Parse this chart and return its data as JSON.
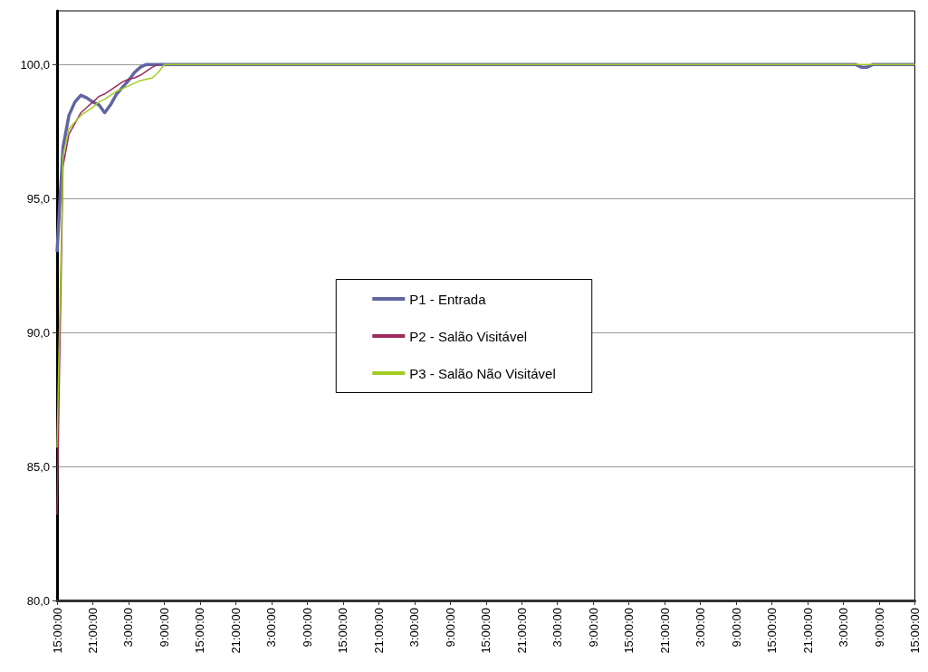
{
  "chart_data": {
    "type": "line",
    "ylim": [
      80,
      102
    ],
    "categories": [
      "15:00:00",
      null,
      null,
      null,
      null,
      null,
      "21:00:00",
      null,
      null,
      null,
      null,
      null,
      "3:00:00",
      null,
      null,
      null,
      null,
      null,
      "9:00:00",
      null,
      null,
      null,
      null,
      null,
      "15:00:00",
      null,
      null,
      null,
      null,
      null,
      "21:00:00",
      null,
      null,
      null,
      null,
      null,
      "3:00:00",
      null,
      null,
      null,
      null,
      null,
      "9:00:00",
      null,
      null,
      null,
      null,
      null,
      "15:00:00",
      null,
      null,
      null,
      null,
      null,
      "21:00:00",
      null,
      null,
      null,
      null,
      null,
      "3:00:00",
      null,
      null,
      null,
      null,
      null,
      "9:00:00",
      null,
      null,
      null,
      null,
      null,
      "15:00:00",
      null,
      null,
      null,
      null,
      null,
      "21:00:00",
      null,
      null,
      null,
      null,
      null,
      "3:00:00",
      null,
      null,
      null,
      null,
      null,
      "9:00:00",
      null,
      null,
      null,
      null,
      null,
      "15:00:00",
      null,
      null,
      null,
      null,
      null,
      "21:00:00",
      null,
      null,
      null,
      null,
      null,
      "3:00:00",
      null,
      null,
      null,
      null,
      null,
      "9:00:00",
      null,
      null,
      null,
      null,
      null,
      "15:00:00",
      null,
      null,
      null,
      null,
      null,
      "21:00:00",
      null,
      null,
      null,
      null,
      null,
      "3:00:00",
      null,
      null,
      null,
      null,
      null,
      "9:00:00",
      null,
      null,
      null,
      null,
      null,
      "15:00:00"
    ],
    "yticks": [
      {
        "value": 80,
        "label": "80,0"
      },
      {
        "value": 85,
        "label": "85,0"
      },
      {
        "value": 90,
        "label": "90,0"
      },
      {
        "value": 95,
        "label": "95,0"
      },
      {
        "value": 100,
        "label": "100,0"
      }
    ],
    "grid": "y",
    "legend": "center",
    "marker": "none",
    "line_style": "solid",
    "series": [
      {
        "name": "P1 - Entrada",
        "color": "#6065a0",
        "values": [
          93.0,
          96.9,
          98.1,
          98.6,
          98.85,
          98.75,
          98.6,
          98.5,
          98.2,
          98.5,
          98.9,
          99.15,
          99.4,
          99.7,
          99.9,
          100,
          100,
          100,
          100,
          100,
          100,
          100,
          100,
          100,
          100,
          100,
          100,
          100,
          100,
          100,
          100,
          100,
          100,
          100,
          100,
          100,
          100,
          100,
          100,
          100,
          100,
          100,
          100,
          100,
          100,
          100,
          100,
          100,
          100,
          100,
          100,
          100,
          100,
          100,
          100,
          100,
          100,
          100,
          100,
          100,
          100,
          100,
          100,
          100,
          100,
          100,
          100,
          100,
          100,
          100,
          100,
          100,
          100,
          100,
          100,
          100,
          100,
          100,
          100,
          100,
          100,
          100,
          100,
          100,
          100,
          100,
          100,
          100,
          100,
          100,
          100,
          100,
          100,
          100,
          100,
          100,
          100,
          100,
          100,
          100,
          100,
          100,
          100,
          100,
          100,
          100,
          100,
          100,
          100,
          100,
          100,
          100,
          100,
          100,
          100,
          100,
          100,
          100,
          100,
          100,
          100,
          100,
          100,
          100,
          100,
          100,
          100,
          100,
          100,
          100,
          100,
          100,
          100,
          100,
          100,
          99.9,
          99.9,
          100,
          100,
          100,
          100,
          100,
          100,
          100,
          100
        ]
      },
      {
        "name": "P2 - Salão Visitável",
        "color": "#9b2a5e",
        "values": [
          83.2,
          96.2,
          97.4,
          97.8,
          98.2,
          98.4,
          98.6,
          98.8,
          98.9,
          99.05,
          99.2,
          99.35,
          99.45,
          99.5,
          99.6,
          99.75,
          99.9,
          100,
          null,
          null,
          null,
          null,
          null,
          null,
          null,
          null,
          null,
          null,
          null,
          null,
          null,
          null,
          null,
          null,
          null,
          null,
          null,
          null,
          null,
          null,
          null,
          null,
          null,
          null,
          null,
          null,
          null,
          null,
          null,
          null,
          null,
          null,
          null,
          null,
          null,
          null,
          null,
          null,
          null,
          null,
          null,
          null,
          null,
          null,
          null,
          null,
          null,
          null,
          null,
          null,
          null,
          null,
          null,
          null,
          null,
          null,
          null,
          null,
          null,
          null,
          null,
          null,
          null,
          null,
          null,
          null,
          null,
          null,
          null,
          null,
          null,
          null,
          null,
          null,
          null,
          null,
          null,
          null,
          null,
          null,
          null,
          null,
          null,
          null,
          null,
          null,
          null,
          null,
          null,
          null,
          null,
          null,
          null,
          null,
          null,
          null,
          null,
          null,
          null,
          null,
          null,
          null,
          null,
          null,
          null,
          null,
          null,
          null,
          null,
          null,
          null,
          null,
          null,
          null,
          null,
          null,
          null,
          null,
          null,
          null,
          null,
          null,
          null,
          null,
          null
        ]
      },
      {
        "name": "P3 - Salão Não Visitável",
        "color": "#a2cc22",
        "values": [
          85.7,
          96.6,
          97.6,
          97.85,
          98.1,
          98.25,
          98.4,
          98.6,
          98.7,
          98.85,
          99.0,
          99.1,
          99.2,
          99.3,
          99.4,
          99.45,
          99.5,
          99.7,
          100,
          100,
          100,
          100,
          100,
          100,
          100,
          100,
          100,
          100,
          100,
          100,
          100,
          100,
          100,
          100,
          100,
          100,
          100,
          100,
          100,
          100,
          100,
          100,
          100,
          100,
          100,
          100,
          100,
          100,
          100,
          100,
          100,
          100,
          100,
          100,
          100,
          100,
          100,
          100,
          100,
          100,
          100,
          100,
          100,
          100,
          100,
          100,
          100,
          100,
          100,
          100,
          100,
          100,
          100,
          100,
          100,
          100,
          100,
          100,
          100,
          100,
          100,
          100,
          100,
          100,
          100,
          100,
          100,
          100,
          100,
          100,
          100,
          100,
          100,
          100,
          100,
          100,
          100,
          100,
          100,
          100,
          100,
          100,
          100,
          100,
          100,
          100,
          100,
          100,
          100,
          100,
          100,
          100,
          100,
          100,
          100,
          100,
          100,
          100,
          100,
          100,
          100,
          100,
          100,
          100,
          100,
          100,
          100,
          100,
          100,
          100,
          100,
          100,
          100,
          100,
          100,
          100,
          100,
          100,
          100,
          100,
          100,
          100,
          100,
          100,
          100
        ]
      }
    ]
  }
}
